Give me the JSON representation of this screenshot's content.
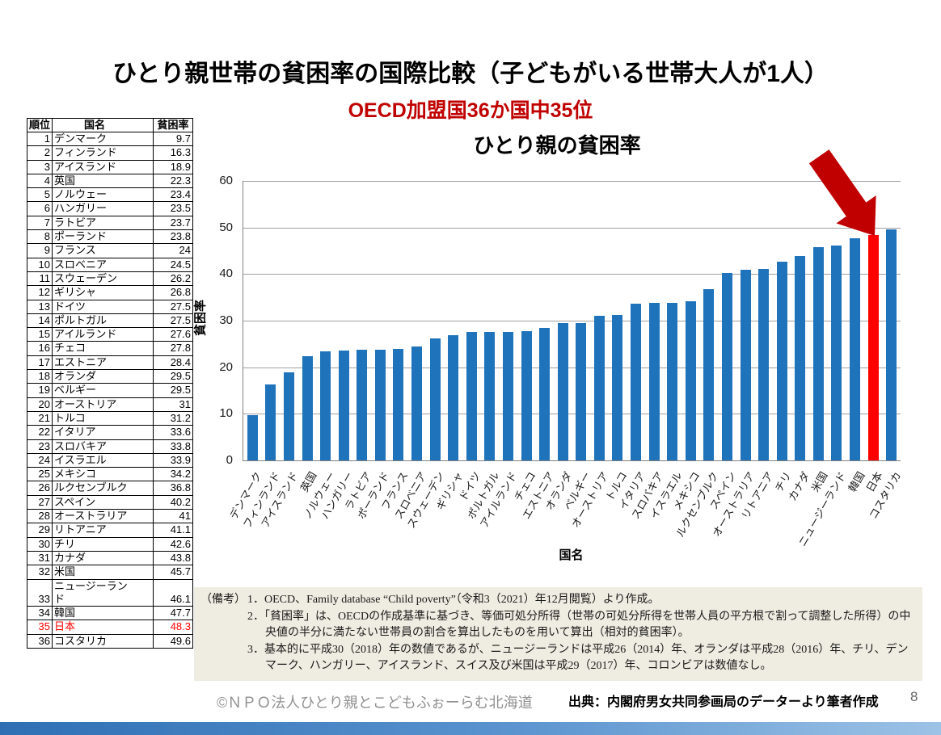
{
  "page": {
    "title": "ひとり親世帯の貧困率の国際比較（子どもがいる世帯大人が1人）",
    "subtitle": "OECD加盟国36か国中35位",
    "page_number": "8",
    "footer": {
      "copyright": "©ＮＰＯ法人ひとり親とこどもふぉーらむ北海道",
      "source": "出典：内閣府男女共同参画局のデーターより筆者作成"
    },
    "accent_bar": {
      "color_left": "#2e6fb4",
      "color_mid": "#5b94cf",
      "color_right": "#9dc3e6"
    }
  },
  "table": {
    "headers": [
      "順位",
      "国名",
      "貧困率"
    ],
    "rows": [
      [
        "1",
        "デンマーク",
        "9.7"
      ],
      [
        "2",
        "フィンランド",
        "16.3"
      ],
      [
        "3",
        "アイスランド",
        "18.9"
      ],
      [
        "4",
        "英国",
        "22.3"
      ],
      [
        "5",
        "ノルウェー",
        "23.4"
      ],
      [
        "6",
        "ハンガリー",
        "23.5"
      ],
      [
        "7",
        "ラトビア",
        "23.7"
      ],
      [
        "8",
        "ポーランド",
        "23.8"
      ],
      [
        "9",
        "フランス",
        "24"
      ],
      [
        "10",
        "スロベニア",
        "24.5"
      ],
      [
        "11",
        "スウェーデン",
        "26.2"
      ],
      [
        "12",
        "ギリシャ",
        "26.8"
      ],
      [
        "13",
        "ドイツ",
        "27.5"
      ],
      [
        "14",
        "ポルトガル",
        "27.5"
      ],
      [
        "15",
        "アイルランド",
        "27.6"
      ],
      [
        "16",
        "チェコ",
        "27.8"
      ],
      [
        "17",
        "エストニア",
        "28.4"
      ],
      [
        "18",
        "オランダ",
        "29.5"
      ],
      [
        "19",
        "ベルギー",
        "29.5"
      ],
      [
        "20",
        "オーストリア",
        "31"
      ],
      [
        "21",
        "トルコ",
        "31.2"
      ],
      [
        "22",
        "イタリア",
        "33.6"
      ],
      [
        "23",
        "スロバキア",
        "33.8"
      ],
      [
        "24",
        "イスラエル",
        "33.9"
      ],
      [
        "25",
        "メキシコ",
        "34.2"
      ],
      [
        "26",
        "ルクセンブルク",
        "36.8"
      ],
      [
        "27",
        "スペイン",
        "40.2"
      ],
      [
        "28",
        "オーストラリア",
        "41"
      ],
      [
        "29",
        "リトアニア",
        "41.1"
      ],
      [
        "30",
        "チリ",
        "42.6"
      ],
      [
        "31",
        "カナダ",
        "43.8"
      ],
      [
        "32",
        "米国",
        "45.7"
      ],
      [
        "33",
        "ニュージーランド",
        "46.1"
      ],
      [
        "34",
        "韓国",
        "47.7"
      ],
      [
        "35",
        "日本",
        "48.3"
      ],
      [
        "36",
        "コスタリカ",
        "49.6"
      ]
    ],
    "highlight_row_index": 34,
    "highlight_color": "#ff0000"
  },
  "chart_data": {
    "type": "bar",
    "title": "ひとり親の貧困率",
    "xlabel": "国名",
    "ylabel": "貧困率",
    "ylim": [
      0,
      60
    ],
    "ytick_step": 10,
    "grid": true,
    "legend": false,
    "categories": [
      "デンマーク",
      "フィンランド",
      "アイスランド",
      "英国",
      "ノルウェー",
      "ハンガリー",
      "ラトビア",
      "ポーランド",
      "フランス",
      "スロベニア",
      "スウェーデン",
      "ギリシャ",
      "ドイツ",
      "ポルトガル",
      "アイルランド",
      "チェコ",
      "エストニア",
      "オランダ",
      "ベルギー",
      "オーストリア",
      "トルコ",
      "イタリア",
      "スロバキア",
      "イスラエル",
      "メキシコ",
      "ルクセンブルク",
      "スペイン",
      "オーストラリア",
      "リトアニア",
      "チリ",
      "カナダ",
      "米国",
      "ニュージーランド",
      "韓国",
      "日本",
      "コスタリカ"
    ],
    "values": [
      9.7,
      16.3,
      18.9,
      22.3,
      23.4,
      23.5,
      23.7,
      23.8,
      24,
      24.5,
      26.2,
      26.8,
      27.5,
      27.5,
      27.6,
      27.8,
      28.4,
      29.5,
      29.5,
      31,
      31.2,
      33.6,
      33.8,
      33.9,
      34.2,
      36.8,
      40.2,
      41,
      41.1,
      42.6,
      43.8,
      45.7,
      46.1,
      47.7,
      48.3,
      49.6
    ],
    "bar_color": "#1f73bb",
    "highlight": {
      "index": 34,
      "category": "日本",
      "color": "#ff0000"
    },
    "annotation_arrow": {
      "color": "#c00000"
    }
  },
  "notes": {
    "label": "（備考）",
    "items": [
      "1．OECD、Family database “Child poverty”（令和3（2021）年12月閲覧）より作成。",
      "2．「貧困率」は、OECDの作成基準に基づき、等価可処分所得（世帯の可処分所得を世帯人員の平方根で割って調整した所得）の中央値の半分に満たない世帯員の割合を算出したものを用いて算出（相対的貧困率）。",
      "3．基本的に平成30（2018）年の数値であるが、ニュージーランドは平成26（2014）年、オランダは平成28（2016）年、チリ、デンマーク、ハンガリー、アイスランド、スイス及び米国は平成29（2017）年、コロンビアは数値なし。"
    ]
  }
}
